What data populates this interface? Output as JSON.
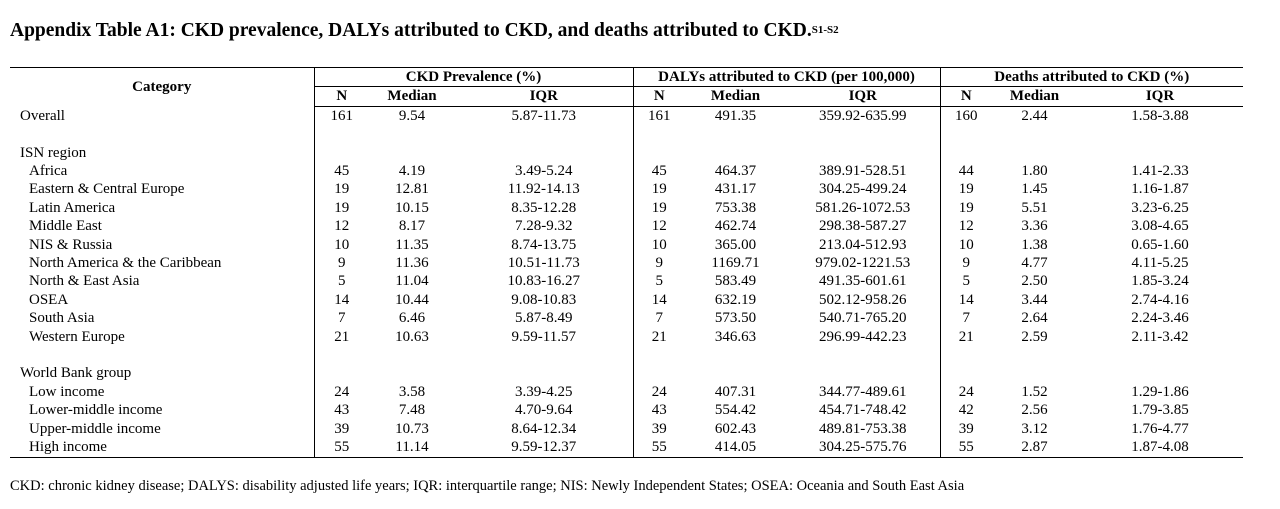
{
  "title": {
    "text": "Appendix Table A1: CKD prevalence, DALYs attributed to CKD, and deaths attributed to CKD.",
    "superscript": "S1-S2"
  },
  "headers": {
    "category": "Category",
    "groups": [
      "CKD Prevalence (%)",
      "DALYs attributed to CKD (per 100,000)",
      "Deaths attributed to CKD (%)"
    ],
    "n": "N",
    "median": "Median",
    "iqr": "IQR"
  },
  "rows": [
    {
      "category": "Overall",
      "level": 0,
      "values": [
        "161",
        "9.54",
        "5.87-11.73",
        "161",
        "491.35",
        "359.92-635.99",
        "160",
        "2.44",
        "1.58-3.88"
      ]
    },
    {
      "spacer": true
    },
    {
      "category": "ISN region",
      "level": 0,
      "values": [
        "",
        "",
        "",
        "",
        "",
        "",
        "",
        "",
        ""
      ]
    },
    {
      "category": "Africa",
      "level": 1,
      "values": [
        "45",
        "4.19",
        "3.49-5.24",
        "45",
        "464.37",
        "389.91-528.51",
        "44",
        "1.80",
        "1.41-2.33"
      ]
    },
    {
      "category": "Eastern & Central Europe",
      "level": 1,
      "values": [
        "19",
        "12.81",
        "11.92-14.13",
        "19",
        "431.17",
        "304.25-499.24",
        "19",
        "1.45",
        "1.16-1.87"
      ]
    },
    {
      "category": "Latin America",
      "level": 1,
      "values": [
        "19",
        "10.15",
        "8.35-12.28",
        "19",
        "753.38",
        "581.26-1072.53",
        "19",
        "5.51",
        "3.23-6.25"
      ]
    },
    {
      "category": "Middle East",
      "level": 1,
      "values": [
        "12",
        "8.17",
        "7.28-9.32",
        "12",
        "462.74",
        "298.38-587.27",
        "12",
        "3.36",
        "3.08-4.65"
      ]
    },
    {
      "category": "NIS & Russia",
      "level": 1,
      "values": [
        "10",
        "11.35",
        "8.74-13.75",
        "10",
        "365.00",
        "213.04-512.93",
        "10",
        "1.38",
        "0.65-1.60"
      ]
    },
    {
      "category": "North America & the Caribbean",
      "level": 1,
      "values": [
        "9",
        "11.36",
        "10.51-11.73",
        "9",
        "1169.71",
        "979.02-1221.53",
        "9",
        "4.77",
        "4.11-5.25"
      ]
    },
    {
      "category": "North & East Asia",
      "level": 1,
      "values": [
        "5",
        "11.04",
        "10.83-16.27",
        "5",
        "583.49",
        "491.35-601.61",
        "5",
        "2.50",
        "1.85-3.24"
      ]
    },
    {
      "category": "OSEA",
      "level": 1,
      "values": [
        "14",
        "10.44",
        "9.08-10.83",
        "14",
        "632.19",
        "502.12-958.26",
        "14",
        "3.44",
        "2.74-4.16"
      ]
    },
    {
      "category": "South Asia",
      "level": 1,
      "values": [
        "7",
        "6.46",
        "5.87-8.49",
        "7",
        "573.50",
        "540.71-765.20",
        "7",
        "2.64",
        "2.24-3.46"
      ]
    },
    {
      "category": "Western Europe",
      "level": 1,
      "values": [
        "21",
        "10.63",
        "9.59-11.57",
        "21",
        "346.63",
        "296.99-442.23",
        "21",
        "2.59",
        "2.11-3.42"
      ]
    },
    {
      "spacer": true
    },
    {
      "category": "World Bank group",
      "level": 0,
      "values": [
        "",
        "",
        "",
        "",
        "",
        "",
        "",
        "",
        ""
      ]
    },
    {
      "category": "Low income",
      "level": 1,
      "values": [
        "24",
        "3.58",
        "3.39-4.25",
        "24",
        "407.31",
        "344.77-489.61",
        "24",
        "1.52",
        "1.29-1.86"
      ]
    },
    {
      "category": "Lower-middle income",
      "level": 1,
      "values": [
        "43",
        "7.48",
        "4.70-9.64",
        "43",
        "554.42",
        "454.71-748.42",
        "42",
        "2.56",
        "1.79-3.85"
      ]
    },
    {
      "category": "Upper-middle income",
      "level": 1,
      "values": [
        "39",
        "10.73",
        "8.64-12.34",
        "39",
        "602.43",
        "489.81-753.38",
        "39",
        "3.12",
        "1.76-4.77"
      ]
    },
    {
      "category": "High income",
      "level": 1,
      "values": [
        "55",
        "11.14",
        "9.59-12.37",
        "55",
        "414.05",
        "304.25-575.76",
        "55",
        "2.87",
        "1.87-4.08"
      ]
    }
  ],
  "footnote": "CKD: chronic kidney disease; DALYS: disability adjusted life years; IQR: interquartile range; NIS: Newly Independent States; OSEA: Oceania and South East Asia"
}
